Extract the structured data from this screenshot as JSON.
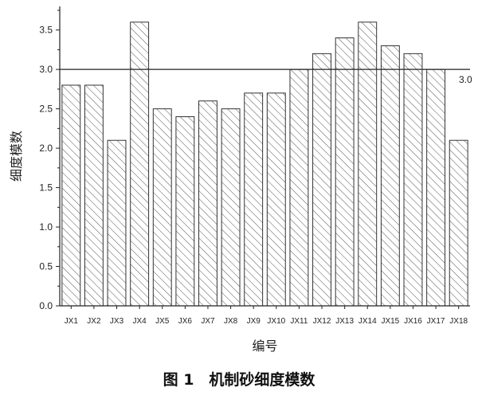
{
  "caption": "图 1　机制砂细度模数",
  "chart_data": {
    "type": "bar",
    "categories": [
      "JX1",
      "JX2",
      "JX3",
      "JX4",
      "JX5",
      "JX6",
      "JX7",
      "JX8",
      "JX9",
      "JX10",
      "JX11",
      "JX12",
      "JX13",
      "JX14",
      "JX15",
      "JX16",
      "JX17",
      "JX18"
    ],
    "values": [
      2.8,
      2.8,
      2.1,
      3.6,
      2.5,
      2.4,
      2.6,
      2.5,
      2.7,
      2.7,
      3.0,
      3.2,
      3.4,
      3.6,
      3.3,
      3.2,
      3.0,
      2.1
    ],
    "xlabel": "编号",
    "ylabel": "细度模数",
    "ylim": [
      0.0,
      3.8
    ],
    "yticks": [
      "0.0",
      "0.5",
      "1.0",
      "1.5",
      "2.0",
      "2.5",
      "3.0",
      "3.5"
    ],
    "reference_line": {
      "value": 3.0,
      "label": "3.0"
    },
    "bar_pattern": "diagonal-hatch",
    "grid": false,
    "colors": {
      "bar_fill": "#ffffff",
      "bar_stroke": "#333333",
      "hatch": "#555555",
      "axis": "#222222"
    }
  }
}
